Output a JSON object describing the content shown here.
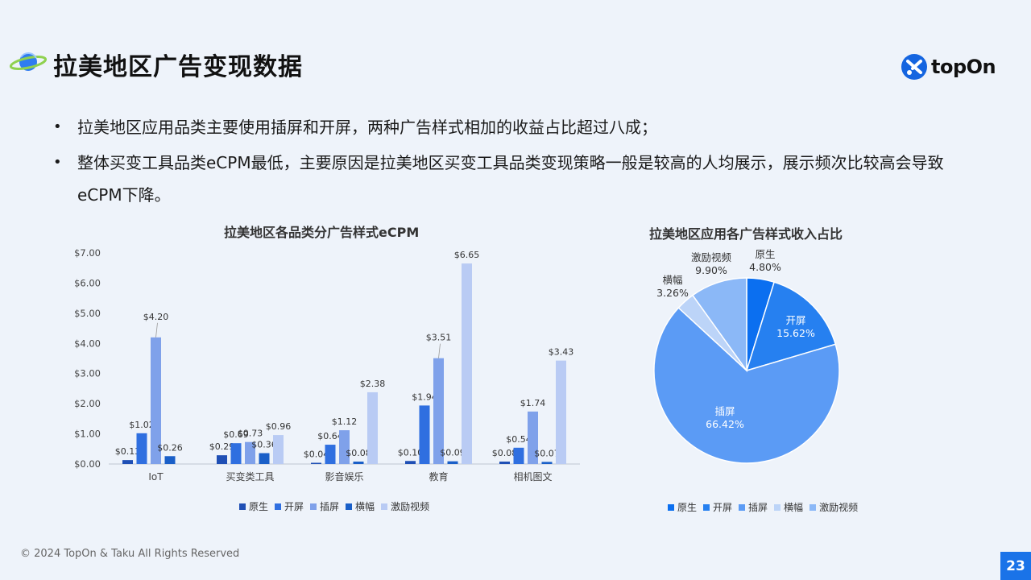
{
  "header": {
    "title": "拉美地区广告变现数据",
    "brand": "topOn"
  },
  "bullets": [
    "拉美地区应用品类主要使用插屏和开屏，两种广告样式相加的收益占比超过八成；",
    "整体买变工具品类eCPM最低，主要原因是拉美地区买变工具品类变现策略一般是较高的人均展示，展示频次比较高会导致eCPM下降。"
  ],
  "colors": {
    "native": "#1f4fb5",
    "splash": "#2f6fe0",
    "interstitial": "#7fa1ea",
    "banner": "#1a5fc8",
    "rewarded": "#b9cbf4",
    "pie_native": "#0b6ff0",
    "pie_splash": "#2680f0",
    "pie_interstitial": "#5b9bf5",
    "pie_banner": "#bcd4f8",
    "pie_rewarded": "#8bb8f7"
  },
  "chart_data": [
    {
      "type": "bar",
      "title": "拉美地区各品类分广告样式eCPM",
      "categories": [
        "IoT",
        "买变类工具",
        "影音娱乐",
        "教育",
        "相机图文"
      ],
      "series": [
        {
          "name": "原生",
          "values": [
            0.13,
            0.29,
            0.04,
            0.1,
            0.08
          ],
          "labels": [
            "$0.13",
            "$0.29",
            "$0.04",
            "$0.10",
            "$0.08"
          ]
        },
        {
          "name": "开屏",
          "values": [
            1.02,
            0.69,
            0.64,
            1.94,
            0.54
          ],
          "labels": [
            "$1.02",
            "$0.69",
            "$0.64",
            "$1.94",
            "$0.54"
          ]
        },
        {
          "name": "插屏",
          "values": [
            4.2,
            0.73,
            1.12,
            3.51,
            1.74
          ],
          "labels": [
            "$4.20",
            "$0.73",
            "$1.12",
            "$3.51",
            "$1.74"
          ]
        },
        {
          "name": "横幅",
          "values": [
            0.26,
            0.36,
            0.08,
            0.09,
            0.07
          ],
          "labels": [
            "$0.26",
            "$0.36",
            "$0.08",
            "$0.09",
            "$0.07"
          ]
        },
        {
          "name": "激励视频",
          "values": [
            0.0,
            0.96,
            2.38,
            6.65,
            3.43
          ],
          "labels": [
            "",
            "$0.96",
            "$2.38",
            "$6.65",
            "$3.43"
          ]
        }
      ],
      "ylim": [
        0,
        7
      ],
      "yticks": [
        "$0.00",
        "$1.00",
        "$2.00",
        "$3.00",
        "$4.00",
        "$5.00",
        "$6.00",
        "$7.00"
      ],
      "legend": "bottom"
    },
    {
      "type": "pie",
      "title": "拉美地区应用各广告样式收入占比",
      "slices": [
        {
          "name": "原生",
          "value": 4.8,
          "label": "4.80%"
        },
        {
          "name": "开屏",
          "value": 15.62,
          "label": "15.62%"
        },
        {
          "name": "插屏",
          "value": 66.42,
          "label": "66.42%"
        },
        {
          "name": "横幅",
          "value": 3.26,
          "label": "3.26%"
        },
        {
          "name": "激励视频",
          "value": 9.9,
          "label": "9.90%"
        }
      ],
      "legend": "bottom"
    }
  ],
  "footer": {
    "copyright": "© 2024 TopOn & Taku All Rights Reserved",
    "page_number": "23"
  }
}
